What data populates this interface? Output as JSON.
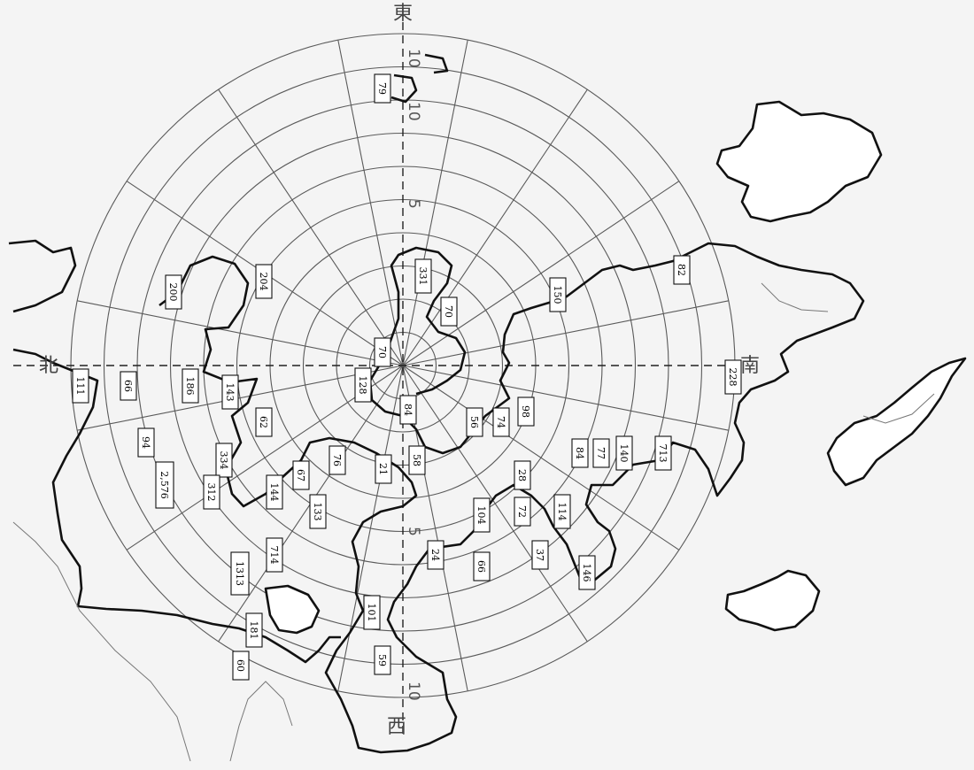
{
  "directions": {
    "east": "東",
    "west": "西",
    "south": "南",
    "north": "北"
  },
  "distance_marks": [
    "10",
    "10",
    "5",
    "5",
    "10"
  ],
  "labels": [
    {
      "id": "a",
      "value": "79"
    },
    {
      "id": "b",
      "value": "331"
    },
    {
      "id": "c",
      "value": "70"
    },
    {
      "id": "d",
      "value": "150"
    },
    {
      "id": "e",
      "value": "82"
    },
    {
      "id": "f",
      "value": "204"
    },
    {
      "id": "g",
      "value": "200"
    },
    {
      "id": "h",
      "value": "70"
    },
    {
      "id": "i",
      "value": "128"
    },
    {
      "id": "j",
      "value": "84"
    },
    {
      "id": "k",
      "value": "56"
    },
    {
      "id": "l",
      "value": "74"
    },
    {
      "id": "m",
      "value": "98"
    },
    {
      "id": "n",
      "value": "228"
    },
    {
      "id": "o",
      "value": "111"
    },
    {
      "id": "p",
      "value": "66"
    },
    {
      "id": "q",
      "value": "186"
    },
    {
      "id": "r",
      "value": "143"
    },
    {
      "id": "s",
      "value": "62"
    },
    {
      "id": "t",
      "value": "94"
    },
    {
      "id": "u",
      "value": "2,576"
    },
    {
      "id": "v",
      "value": "334"
    },
    {
      "id": "w",
      "value": "312"
    },
    {
      "id": "x",
      "value": "144"
    },
    {
      "id": "y",
      "value": "67"
    },
    {
      "id": "z",
      "value": "76"
    },
    {
      "id": "aa",
      "value": "21"
    },
    {
      "id": "ab",
      "value": "58"
    },
    {
      "id": "ac",
      "value": "133"
    },
    {
      "id": "ad",
      "value": "28"
    },
    {
      "id": "ae",
      "value": "84"
    },
    {
      "id": "af",
      "value": "77"
    },
    {
      "id": "ag",
      "value": "140"
    },
    {
      "id": "ah",
      "value": "713"
    },
    {
      "id": "ai",
      "value": "104"
    },
    {
      "id": "aj",
      "value": "72"
    },
    {
      "id": "ak",
      "value": "114"
    },
    {
      "id": "al",
      "value": "714"
    },
    {
      "id": "am",
      "value": "1313"
    },
    {
      "id": "an",
      "value": "24"
    },
    {
      "id": "ao",
      "value": "66"
    },
    {
      "id": "ap",
      "value": "37"
    },
    {
      "id": "aq",
      "value": "146"
    },
    {
      "id": "ar",
      "value": "101"
    },
    {
      "id": "as",
      "value": "181"
    },
    {
      "id": "at",
      "value": "60"
    },
    {
      "id": "au",
      "value": "59"
    }
  ]
}
